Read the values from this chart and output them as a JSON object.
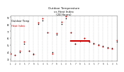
{
  "title": "Outdoor Temperature\nvs Heat Index\n(24 Hours)",
  "background_color": "#ffffff",
  "grid_color": "#bbbbbb",
  "xlim": [
    0,
    23
  ],
  "ylim": [
    28,
    92
  ],
  "yticks": [
    30,
    40,
    50,
    60,
    70,
    80,
    90
  ],
  "ytick_labels": [
    "3",
    "4",
    "5",
    "6",
    "7",
    "8",
    "9"
  ],
  "xtick_labels": [
    "1",
    "2",
    "5",
    "1",
    "5",
    "1",
    "5",
    "1",
    "5",
    "1",
    "5",
    "1",
    "5",
    "1",
    "5",
    "1",
    "5",
    "1",
    "5",
    "1",
    "5",
    "3",
    "5"
  ],
  "temp_x": [
    0,
    1,
    2,
    3,
    4,
    5,
    6,
    7,
    8,
    9,
    10,
    11,
    12,
    13,
    14,
    15,
    16,
    17,
    18,
    19,
    20,
    21,
    22,
    23
  ],
  "temp_y": [
    38,
    36,
    40,
    52,
    42,
    38,
    80,
    85,
    68,
    40,
    65,
    80,
    88,
    68,
    52,
    56,
    60,
    55,
    53,
    51,
    49,
    47,
    46,
    55
  ],
  "heat_x": [
    0,
    1,
    2,
    3,
    4,
    5,
    6,
    7,
    8,
    9,
    10,
    11,
    12,
    13,
    14,
    15,
    16,
    17,
    18,
    19,
    20,
    21,
    22,
    23
  ],
  "heat_y": [
    38,
    36,
    42,
    55,
    42,
    37,
    82,
    88,
    68,
    38,
    67,
    83,
    91,
    68,
    52,
    56,
    60,
    55,
    52,
    50,
    48,
    46,
    45,
    57
  ],
  "heat_line_x": [
    13,
    17
  ],
  "heat_line_y": [
    56,
    56
  ],
  "temp_color": "#000000",
  "heat_color": "#cc0000",
  "legend_label": "Outdoor Temp",
  "legend_heat": "Heat Index"
}
